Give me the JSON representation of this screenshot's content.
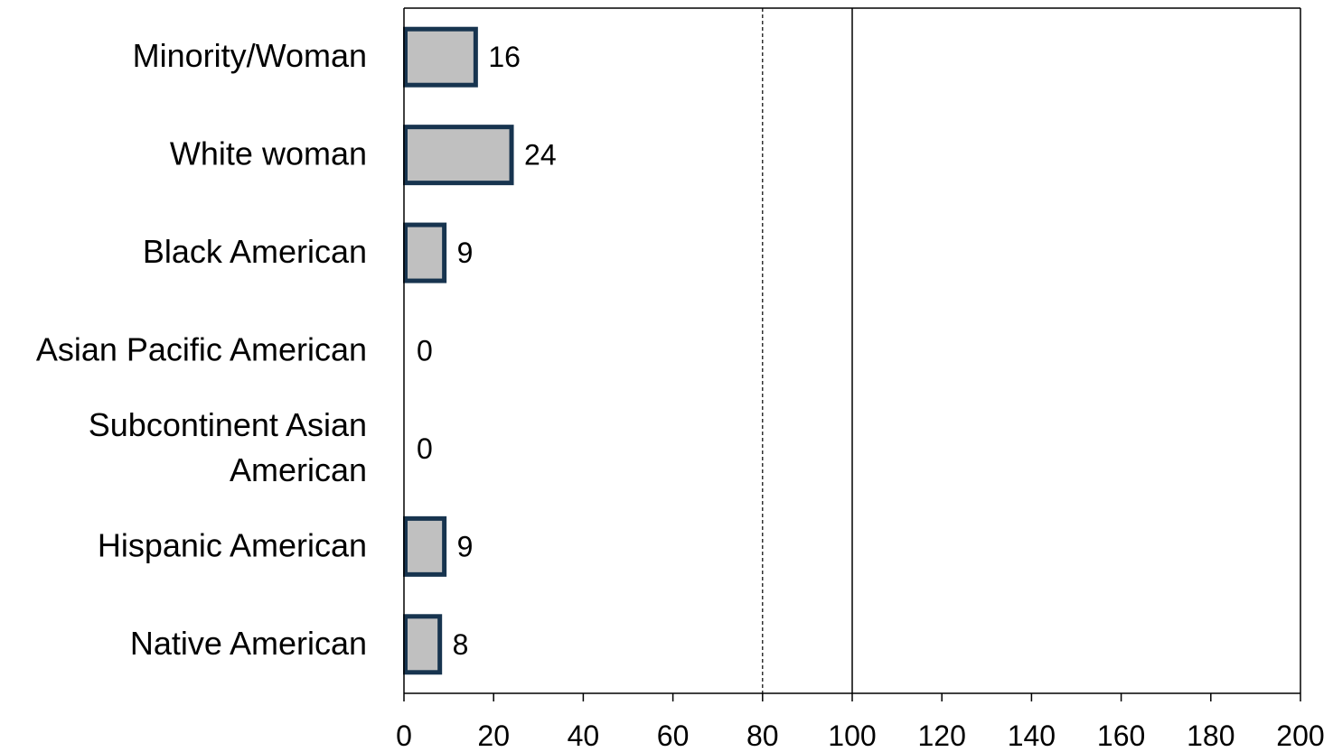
{
  "chart_data": {
    "type": "bar",
    "orientation": "horizontal",
    "categories": [
      [
        "Minority/Woman"
      ],
      [
        "White woman"
      ],
      [
        "Black American"
      ],
      [
        "Asian Pacific American"
      ],
      [
        "Subcontinent Asian",
        "American"
      ],
      [
        "Hispanic American"
      ],
      [
        "Native American"
      ]
    ],
    "values": [
      16,
      24,
      9,
      0,
      0,
      9,
      8
    ],
    "value_labels": [
      "16",
      "24",
      "9",
      "0",
      "0",
      "9",
      "8"
    ],
    "xlim": [
      0,
      200
    ],
    "xticks": [
      0,
      20,
      40,
      60,
      80,
      100,
      120,
      140,
      160,
      180,
      200
    ],
    "xtick_labels": [
      "0",
      "20",
      "40",
      "60",
      "80",
      "100",
      "120",
      "140",
      "160",
      "180",
      "200"
    ],
    "reference_lines": [
      {
        "value": 80,
        "style": "dashed"
      },
      {
        "value": 100,
        "style": "solid"
      }
    ],
    "bar_fill": "#c0c0c0",
    "bar_stroke": "#17344f",
    "grid": false,
    "legend": false
  }
}
